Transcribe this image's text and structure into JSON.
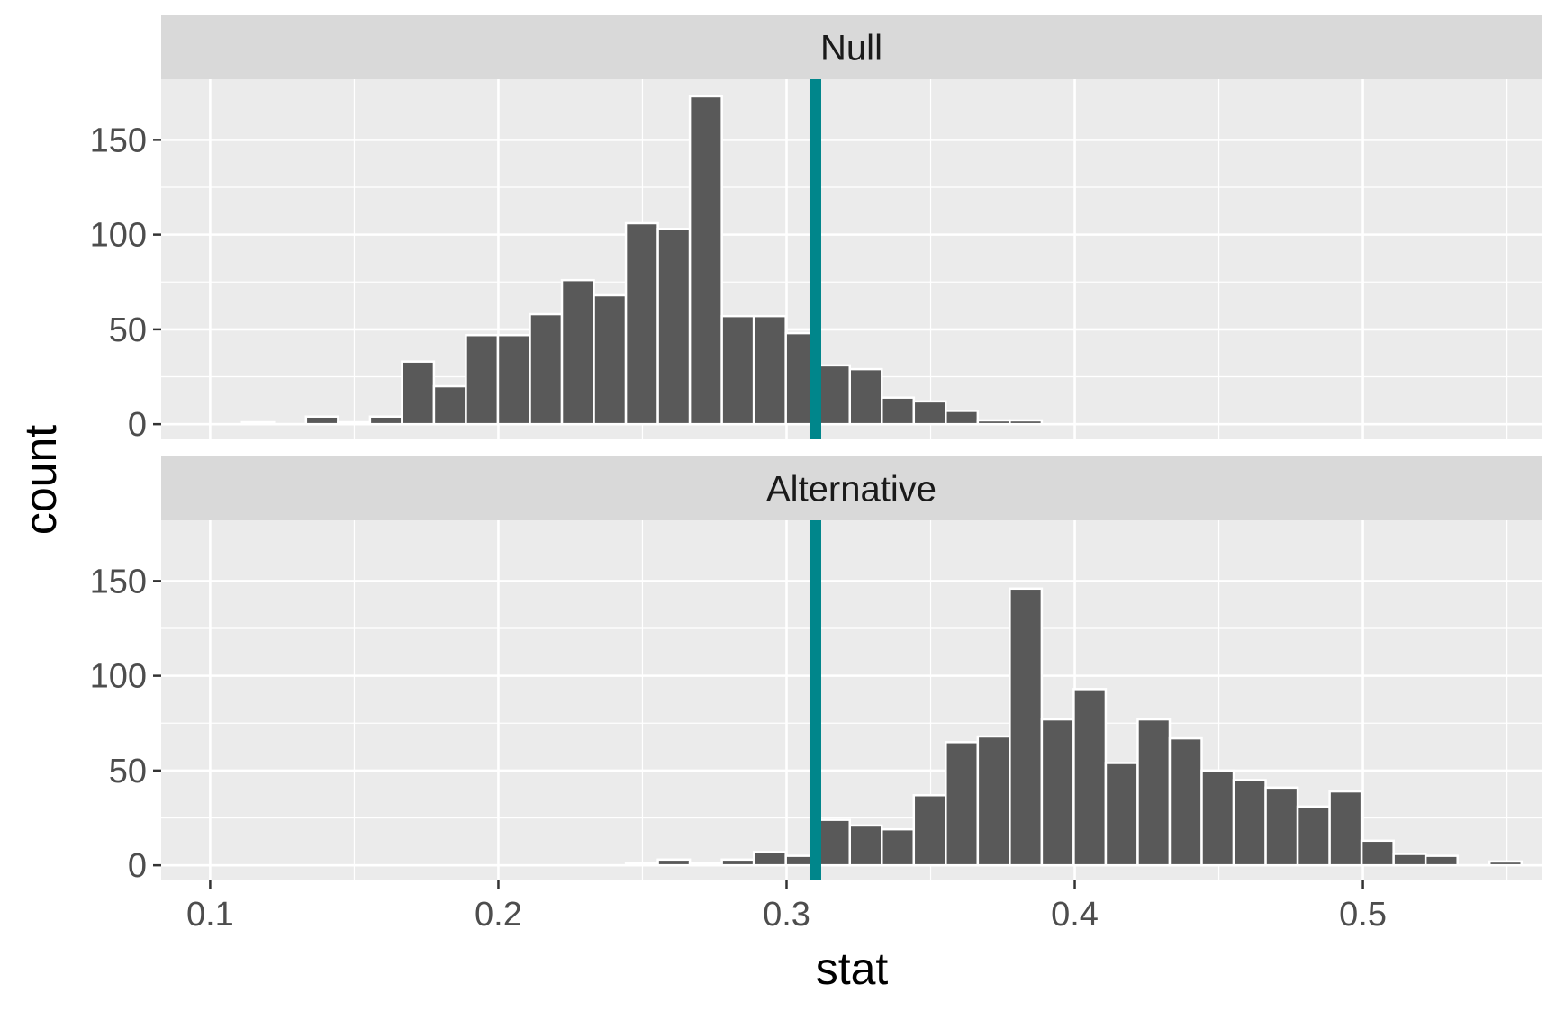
{
  "chart_data": {
    "type": "bar",
    "layout": "faceted-histogram",
    "xlabel": "stat",
    "ylabel": "count",
    "xlim": [
      0.083,
      0.562
    ],
    "ylim": [
      -8,
      182
    ],
    "x_ticks": [
      {
        "value": 0.1,
        "label": "0.1"
      },
      {
        "value": 0.2,
        "label": "0.2"
      },
      {
        "value": 0.3,
        "label": "0.3"
      },
      {
        "value": 0.4,
        "label": "0.4"
      },
      {
        "value": 0.5,
        "label": "0.5"
      }
    ],
    "y_ticks": [
      {
        "value": 0,
        "label": "0"
      },
      {
        "value": 50,
        "label": "50"
      },
      {
        "value": 100,
        "label": "100"
      },
      {
        "value": 150,
        "label": "150"
      }
    ],
    "bin_width": 0.0111,
    "reference_line": {
      "x": 0.31,
      "color": "#00868B"
    },
    "grid": true,
    "colors": {
      "bar_fill": "#595959",
      "bar_outline": "#ffffff",
      "panel_bg": "#EBEBEB",
      "strip_bg": "#D9D9D9",
      "grid": "#ffffff"
    },
    "facets": [
      {
        "label": "Null",
        "bins": [
          {
            "x": 0.1166,
            "count": 1
          },
          {
            "x": 0.1277,
            "count": 0
          },
          {
            "x": 0.1388,
            "count": 4
          },
          {
            "x": 0.1499,
            "count": 1
          },
          {
            "x": 0.161,
            "count": 4
          },
          {
            "x": 0.1721,
            "count": 33
          },
          {
            "x": 0.1832,
            "count": 20
          },
          {
            "x": 0.1943,
            "count": 47
          },
          {
            "x": 0.2054,
            "count": 47
          },
          {
            "x": 0.2165,
            "count": 58
          },
          {
            "x": 0.2276,
            "count": 76
          },
          {
            "x": 0.2387,
            "count": 68
          },
          {
            "x": 0.2498,
            "count": 106
          },
          {
            "x": 0.2609,
            "count": 103
          },
          {
            "x": 0.272,
            "count": 173
          },
          {
            "x": 0.2831,
            "count": 57
          },
          {
            "x": 0.2942,
            "count": 57
          },
          {
            "x": 0.3053,
            "count": 48
          },
          {
            "x": 0.3164,
            "count": 31
          },
          {
            "x": 0.3275,
            "count": 29
          },
          {
            "x": 0.3386,
            "count": 14
          },
          {
            "x": 0.3497,
            "count": 12
          },
          {
            "x": 0.3608,
            "count": 7
          },
          {
            "x": 0.3719,
            "count": 2
          },
          {
            "x": 0.383,
            "count": 2
          }
        ]
      },
      {
        "label": "Alternative",
        "bins": [
          {
            "x": 0.2498,
            "count": 1
          },
          {
            "x": 0.2609,
            "count": 3
          },
          {
            "x": 0.272,
            "count": 1
          },
          {
            "x": 0.2831,
            "count": 3
          },
          {
            "x": 0.2942,
            "count": 7
          },
          {
            "x": 0.3053,
            "count": 5
          },
          {
            "x": 0.3164,
            "count": 24
          },
          {
            "x": 0.3275,
            "count": 21
          },
          {
            "x": 0.3386,
            "count": 19
          },
          {
            "x": 0.3497,
            "count": 37
          },
          {
            "x": 0.3608,
            "count": 65
          },
          {
            "x": 0.3719,
            "count": 68
          },
          {
            "x": 0.383,
            "count": 146
          },
          {
            "x": 0.3941,
            "count": 77
          },
          {
            "x": 0.4052,
            "count": 93
          },
          {
            "x": 0.4163,
            "count": 54
          },
          {
            "x": 0.4274,
            "count": 77
          },
          {
            "x": 0.4385,
            "count": 67
          },
          {
            "x": 0.4496,
            "count": 50
          },
          {
            "x": 0.4607,
            "count": 45
          },
          {
            "x": 0.4718,
            "count": 41
          },
          {
            "x": 0.4829,
            "count": 31
          },
          {
            "x": 0.494,
            "count": 39
          },
          {
            "x": 0.5051,
            "count": 13
          },
          {
            "x": 0.5162,
            "count": 6
          },
          {
            "x": 0.5273,
            "count": 5
          },
          {
            "x": 0.5384,
            "count": 0
          },
          {
            "x": 0.5495,
            "count": 2
          }
        ]
      }
    ]
  }
}
